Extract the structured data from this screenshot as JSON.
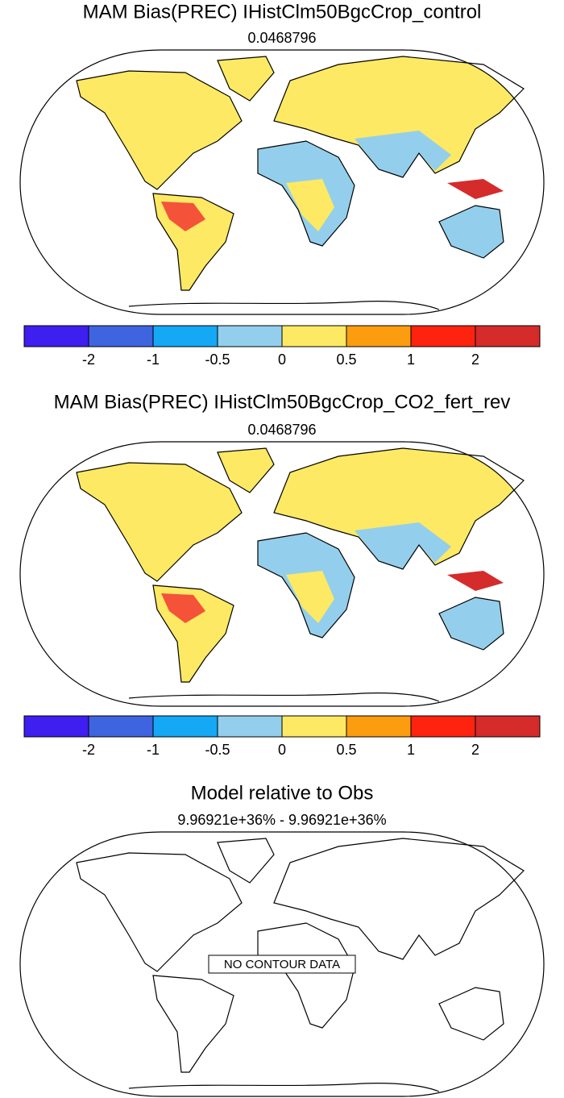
{
  "panels": [
    {
      "title": "MAM Bias(PREC) IHistClm50BgcCrop_control",
      "subtitle": "0.0468796",
      "colorbar": {
        "levels": [
          -2,
          -1,
          -0.5,
          0,
          0.5,
          1,
          2
        ],
        "colors": [
          "#3f1ef0",
          "#3e64df",
          "#14a8f5",
          "#93cfec",
          "#fde963",
          "#fb9d0f",
          "#fd230f",
          "#d52b2b"
        ]
      }
    },
    {
      "title": "MAM Bias(PREC) IHistClm50BgcCrop_CO2_fert_rev",
      "subtitle": "0.0468796",
      "colorbar": {
        "levels": [
          -2,
          -1,
          -0.5,
          0,
          0.5,
          1,
          2
        ],
        "colors": [
          "#3f1ef0",
          "#3e64df",
          "#14a8f5",
          "#93cfec",
          "#fde963",
          "#fb9d0f",
          "#fd230f",
          "#d52b2b"
        ]
      }
    },
    {
      "title": "Model relative to Obs",
      "subtitle": "9.96921e+36% - 9.96921e+36%",
      "note": "NO CONTOUR DATA"
    }
  ]
}
